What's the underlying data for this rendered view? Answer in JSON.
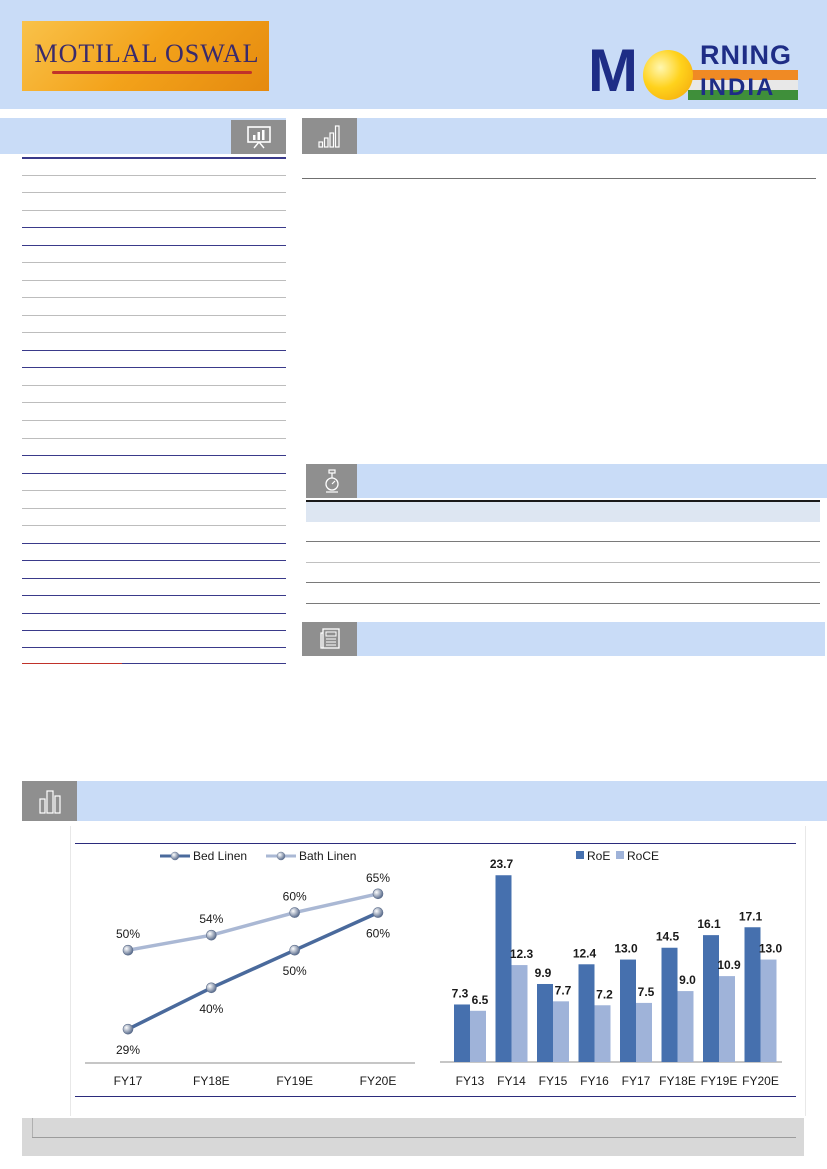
{
  "header": {
    "left_logo_text": "MOTILAL OSWAL",
    "right_logo": {
      "m": "M",
      "rning": "RNING",
      "india": "INDIA"
    }
  },
  "icons": {
    "sidebar": "presentation-chart-icon",
    "market": "bar-chart-icon",
    "table": "thermometer-icon",
    "news": "newspaper-icon",
    "charts": "building-chart-icon"
  },
  "colors": {
    "header_bg": "#c9dcf7",
    "navy_rule": "#2b2b7c",
    "bed_linen": "#4a6a9c",
    "bath_linen": "#aab8d4",
    "roe": "#4670ae",
    "roce": "#9fb3d9"
  },
  "chart_data": [
    {
      "type": "line",
      "x": [
        "FY17",
        "FY18E",
        "FY19E",
        "FY20E"
      ],
      "series": [
        {
          "name": "Bed Linen",
          "values": [
            29,
            40,
            50,
            60
          ],
          "labels": [
            "29%",
            "40%",
            "50%",
            "60%"
          ]
        },
        {
          "name": "Bath Linen",
          "values": [
            50,
            54,
            60,
            65
          ],
          "labels": [
            "50%",
            "54%",
            "60%",
            "65%"
          ]
        }
      ],
      "legend": "top",
      "ylim": [
        20,
        70
      ],
      "grid": false
    },
    {
      "type": "bar",
      "categories": [
        "FY13",
        "FY14",
        "FY15",
        "FY16",
        "FY17",
        "FY18E",
        "FY19E",
        "FY20E"
      ],
      "series": [
        {
          "name": "RoE",
          "values": [
            7.3,
            23.7,
            9.9,
            12.4,
            13.0,
            14.5,
            16.1,
            17.1
          ],
          "labels": [
            "7.3",
            "23.7",
            "9.9",
            "12.4",
            "13.0",
            "14.5",
            "16.1",
            "17.1"
          ]
        },
        {
          "name": "RoCE",
          "values": [
            6.5,
            12.3,
            7.7,
            7.2,
            7.5,
            9.0,
            10.9,
            13.0
          ],
          "labels": [
            "6.5",
            "12.3",
            "7.7",
            "7.2",
            "7.5",
            "9.0",
            "10.9",
            "13.0"
          ]
        }
      ],
      "legend": "top",
      "ylim": [
        0,
        25
      ],
      "grid": false
    }
  ]
}
